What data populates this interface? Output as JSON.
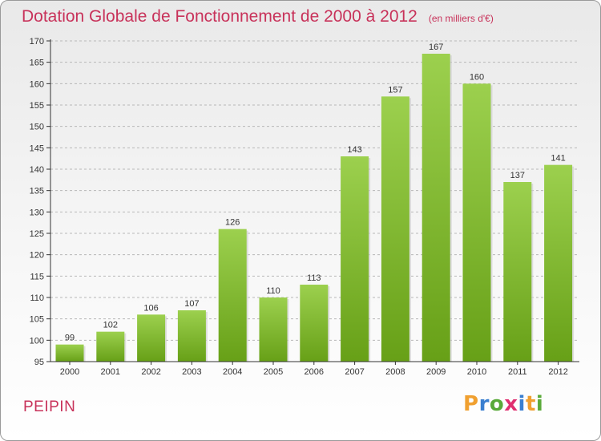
{
  "title": "Dotation Globale de Fonctionnement de 2000 à 2012",
  "subtitle": "(en milliers d'€)",
  "commune": "PEIPIN",
  "logo": {
    "text": "Proxiti",
    "letter_colors": [
      "#f0a030",
      "#3a7fd0",
      "#5aaa3a",
      "#e03070",
      "#3a7fd0",
      "#f0a030",
      "#5aaa3a"
    ]
  },
  "colors": {
    "title": "#c8325a",
    "bar_light": "#9cd04e",
    "bar_dark": "#67a017"
  },
  "chart_data": {
    "type": "bar",
    "categories": [
      "2000",
      "2001",
      "2002",
      "2003",
      "2004",
      "2005",
      "2006",
      "2007",
      "2008",
      "2009",
      "2010",
      "2011",
      "2012"
    ],
    "values": [
      99,
      102,
      106,
      107,
      126,
      110,
      113,
      143,
      157,
      167,
      160,
      137,
      141
    ],
    "title": "Dotation Globale de Fonctionnement de 2000 à 2012",
    "subtitle": "(en milliers d'€)",
    "xlabel": "",
    "ylabel": "",
    "ylim": [
      95,
      170
    ],
    "yticks": [
      95,
      100,
      105,
      110,
      115,
      120,
      125,
      130,
      135,
      140,
      145,
      150,
      155,
      160,
      165,
      170
    ],
    "grid": "horizontal dashed",
    "legend": "none"
  }
}
